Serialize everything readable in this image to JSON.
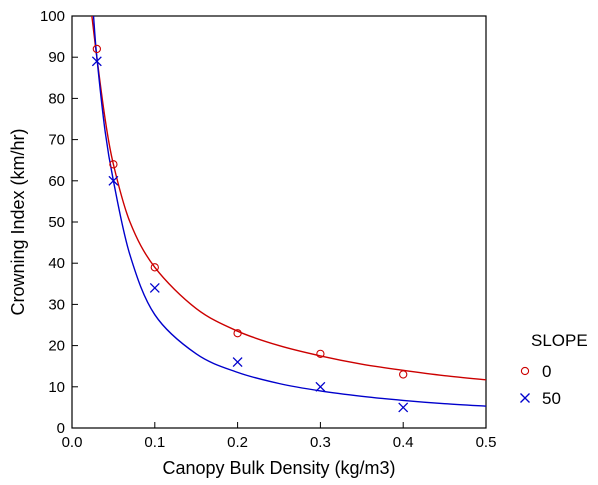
{
  "chart_data": {
    "type": "scatter",
    "title": "",
    "xlabel": "Canopy Bulk Density (kg/m3)",
    "ylabel": "Crowning Index (km/hr)",
    "xlim": [
      0.0,
      0.5
    ],
    "ylim": [
      0,
      100
    ],
    "xticks": [
      "0.0",
      "0.1",
      "0.2",
      "0.3",
      "0.4",
      "0.5"
    ],
    "yticks": [
      "0",
      "10",
      "20",
      "30",
      "40",
      "50",
      "60",
      "70",
      "80",
      "90",
      "100"
    ],
    "grid": false,
    "legend": {
      "title": "SLOPE",
      "placement": "right"
    },
    "series": [
      {
        "name": "0",
        "marker": "circle",
        "color": "#cc0000",
        "points": [
          {
            "x": 0.03,
            "y": 92
          },
          {
            "x": 0.05,
            "y": 64
          },
          {
            "x": 0.1,
            "y": 39
          },
          {
            "x": 0.2,
            "y": 23
          },
          {
            "x": 0.3,
            "y": 18
          },
          {
            "x": 0.4,
            "y": 13
          }
        ],
        "fit": [
          {
            "x": 0.024,
            "y": 100
          },
          {
            "x": 0.03,
            "y": 90
          },
          {
            "x": 0.04,
            "y": 75
          },
          {
            "x": 0.05,
            "y": 64
          },
          {
            "x": 0.07,
            "y": 50
          },
          {
            "x": 0.1,
            "y": 39
          },
          {
            "x": 0.15,
            "y": 29
          },
          {
            "x": 0.2,
            "y": 23.5
          },
          {
            "x": 0.25,
            "y": 20
          },
          {
            "x": 0.3,
            "y": 17.5
          },
          {
            "x": 0.35,
            "y": 15.5
          },
          {
            "x": 0.4,
            "y": 14
          },
          {
            "x": 0.45,
            "y": 12.7
          },
          {
            "x": 0.5,
            "y": 11.7
          }
        ]
      },
      {
        "name": "50",
        "marker": "x",
        "color": "#0000cc",
        "points": [
          {
            "x": 0.03,
            "y": 89
          },
          {
            "x": 0.05,
            "y": 60
          },
          {
            "x": 0.1,
            "y": 34
          },
          {
            "x": 0.2,
            "y": 16
          },
          {
            "x": 0.3,
            "y": 10
          },
          {
            "x": 0.4,
            "y": 5
          }
        ],
        "fit": [
          {
            "x": 0.026,
            "y": 100
          },
          {
            "x": 0.03,
            "y": 90
          },
          {
            "x": 0.04,
            "y": 72
          },
          {
            "x": 0.05,
            "y": 60
          },
          {
            "x": 0.07,
            "y": 42
          },
          {
            "x": 0.1,
            "y": 27.5
          },
          {
            "x": 0.15,
            "y": 18
          },
          {
            "x": 0.2,
            "y": 13.5
          },
          {
            "x": 0.25,
            "y": 10.8
          },
          {
            "x": 0.3,
            "y": 9
          },
          {
            "x": 0.35,
            "y": 7.7
          },
          {
            "x": 0.4,
            "y": 6.7
          },
          {
            "x": 0.45,
            "y": 5.9
          },
          {
            "x": 0.5,
            "y": 5.3
          }
        ]
      }
    ]
  }
}
